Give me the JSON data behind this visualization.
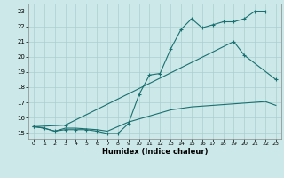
{
  "xlabel": "Humidex (Indice chaleur)",
  "bg_color": "#cce8e8",
  "line_color": "#1a7070",
  "grid_color": "#aacfcf",
  "xlim": [
    -0.5,
    23.5
  ],
  "ylim": [
    14.6,
    23.5
  ],
  "xticks": [
    0,
    1,
    2,
    3,
    4,
    5,
    6,
    7,
    8,
    9,
    10,
    11,
    12,
    13,
    14,
    15,
    16,
    17,
    18,
    19,
    20,
    21,
    22,
    23
  ],
  "yticks": [
    15,
    16,
    17,
    18,
    19,
    20,
    21,
    22,
    23
  ],
  "line1_x": [
    0,
    1,
    2,
    3,
    4,
    5,
    6,
    7,
    8,
    9,
    10,
    11,
    12,
    13,
    14,
    15,
    16,
    17,
    18,
    19,
    20,
    21,
    22
  ],
  "line1_y": [
    15.4,
    15.3,
    15.1,
    15.2,
    15.2,
    15.2,
    15.1,
    14.95,
    14.95,
    15.6,
    17.5,
    18.8,
    18.9,
    20.5,
    21.8,
    22.5,
    21.9,
    22.1,
    22.3,
    22.3,
    22.5,
    23.0,
    23.0
  ],
  "line2_x": [
    0,
    3,
    19,
    20,
    23
  ],
  "line2_y": [
    15.4,
    15.5,
    21.0,
    20.1,
    18.5
  ],
  "line3_x": [
    0,
    1,
    2,
    3,
    4,
    5,
    6,
    7,
    8,
    9,
    10,
    11,
    12,
    13,
    14,
    15,
    16,
    17,
    18,
    19,
    20,
    21,
    22,
    23
  ],
  "line3_y": [
    15.4,
    15.3,
    15.1,
    15.3,
    15.3,
    15.25,
    15.2,
    15.1,
    15.4,
    15.7,
    15.9,
    16.1,
    16.3,
    16.5,
    16.6,
    16.7,
    16.75,
    16.8,
    16.85,
    16.9,
    16.95,
    17.0,
    17.05,
    16.8
  ]
}
